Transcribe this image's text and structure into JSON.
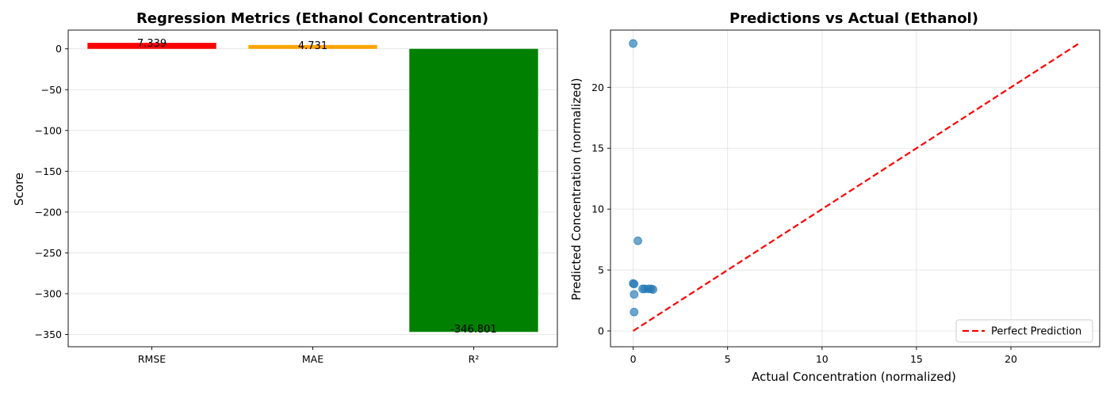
{
  "chart_data": [
    {
      "type": "bar",
      "title": "Regression Metrics (Ethanol Concentration)",
      "xlabel": "",
      "ylabel": "Score",
      "categories": [
        "RMSE",
        "MAE",
        "R²"
      ],
      "values": [
        7.339,
        4.731,
        -346.801
      ],
      "data_labels": [
        "7.339",
        "4.731",
        "-346.801"
      ],
      "colors": [
        "#ff0000",
        "#ffa500",
        "#008000"
      ],
      "ylim": [
        -365,
        23
      ],
      "yticks": [
        0,
        -50,
        -100,
        -150,
        -200,
        -250,
        -300,
        -350
      ],
      "ytick_labels": [
        "0",
        "−50",
        "−100",
        "−150",
        "−200",
        "−250",
        "−300",
        "−350"
      ],
      "grid": "y"
    },
    {
      "type": "scatter",
      "title": "Predictions vs Actual (Ethanol)",
      "xlabel": "Actual Concentration (normalized)",
      "ylabel": "Predicted Concentration (normalized)",
      "xlim": [
        -1.2,
        24.7
      ],
      "ylim": [
        -1.3,
        24.7
      ],
      "xticks": [
        0,
        5,
        10,
        15,
        20
      ],
      "xtick_labels": [
        "0",
        "5",
        "10",
        "15",
        "20"
      ],
      "yticks": [
        0,
        5,
        10,
        15,
        20
      ],
      "ytick_labels": [
        "0",
        "5",
        "10",
        "15",
        "20"
      ],
      "grid": "both",
      "point_color": "#1f77b4",
      "points": [
        {
          "x": 0.0,
          "y": 23.6
        },
        {
          "x": 0.25,
          "y": 7.4
        },
        {
          "x": 0.0,
          "y": 3.9
        },
        {
          "x": 0.05,
          "y": 3.85
        },
        {
          "x": 0.5,
          "y": 3.45
        },
        {
          "x": 0.6,
          "y": 3.45
        },
        {
          "x": 0.8,
          "y": 3.45
        },
        {
          "x": 0.95,
          "y": 3.45
        },
        {
          "x": 1.05,
          "y": 3.4
        },
        {
          "x": 0.05,
          "y": 3.0
        },
        {
          "x": 0.05,
          "y": 1.55
        }
      ],
      "reference_line": {
        "name": "Perfect Prediction",
        "color": "#ff0000",
        "style": "dashed",
        "x": [
          0,
          23.6
        ],
        "y": [
          0,
          23.6
        ]
      },
      "legend": {
        "position": "bottom-right",
        "entries": [
          "Perfect Prediction"
        ]
      }
    }
  ]
}
